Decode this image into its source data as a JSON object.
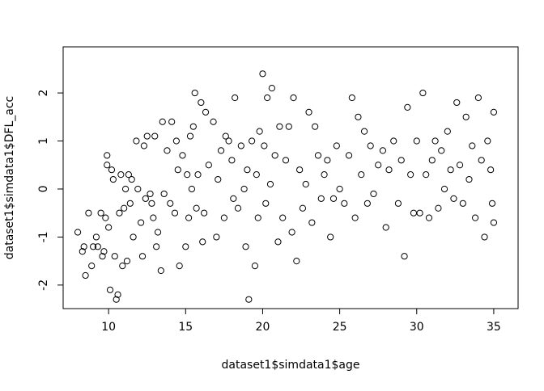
{
  "chart_data": {
    "type": "scatter",
    "x_label": "dataset1$simdata1$age",
    "y_label": "dataset1$simdata1$DFL_acc",
    "xlim": [
      7.05,
      36.58
    ],
    "ylim": [
      -2.49,
      2.96
    ],
    "xticks": [
      10,
      15,
      20,
      25,
      30,
      35
    ],
    "yticks": [
      -2,
      -1,
      0,
      1,
      2
    ],
    "color": "#000000",
    "x": [
      8.0,
      8.3,
      8.4,
      8.5,
      8.7,
      8.9,
      9.0,
      9.2,
      9.3,
      9.5,
      9.6,
      9.7,
      9.8,
      9.9,
      9.9,
      10.0,
      10.1,
      10.2,
      10.3,
      10.4,
      10.5,
      10.6,
      10.7,
      10.8,
      10.9,
      11.0,
      11.1,
      11.2,
      11.3,
      11.4,
      11.5,
      11.6,
      11.8,
      11.9,
      12.1,
      12.2,
      12.3,
      12.4,
      12.5,
      12.7,
      12.8,
      12.9,
      13.0,
      13.1,
      13.2,
      13.4,
      13.5,
      13.6,
      13.8,
      14.0,
      14.1,
      14.3,
      14.4,
      14.5,
      14.6,
      14.8,
      15.0,
      15.1,
      15.2,
      15.3,
      15.4,
      15.5,
      15.6,
      15.7,
      15.8,
      16.0,
      16.1,
      16.2,
      16.3,
      16.5,
      16.8,
      17.0,
      17.1,
      17.3,
      17.5,
      17.6,
      17.8,
      18.0,
      18.1,
      18.2,
      18.4,
      18.6,
      18.8,
      18.9,
      19.0,
      19.1,
      19.3,
      19.5,
      19.6,
      19.7,
      19.8,
      20.0,
      20.1,
      20.2,
      20.3,
      20.5,
      20.6,
      20.8,
      21.0,
      21.1,
      21.3,
      21.5,
      21.7,
      21.9,
      22.0,
      22.2,
      22.4,
      22.6,
      22.8,
      23.0,
      23.2,
      23.4,
      23.6,
      23.8,
      24.0,
      24.2,
      24.4,
      24.6,
      24.8,
      25.0,
      25.3,
      25.6,
      25.8,
      26.0,
      26.2,
      26.4,
      26.6,
      26.8,
      27.0,
      27.2,
      27.5,
      27.8,
      28.0,
      28.2,
      28.5,
      28.8,
      29.0,
      29.2,
      29.4,
      29.6,
      29.8,
      30.0,
      30.2,
      30.4,
      30.6,
      30.8,
      31.0,
      31.2,
      31.4,
      31.6,
      31.8,
      32.0,
      32.2,
      32.4,
      32.6,
      32.8,
      33.0,
      33.2,
      33.4,
      33.6,
      33.8,
      34.0,
      34.2,
      34.4,
      34.6,
      34.8,
      34.9,
      35.0,
      35.0
    ],
    "y": [
      -0.9,
      -1.3,
      -1.2,
      -1.8,
      -0.5,
      -1.6,
      -1.2,
      -1.0,
      -1.2,
      -0.5,
      -1.4,
      -1.3,
      -0.6,
      0.5,
      0.7,
      -0.8,
      -2.1,
      0.4,
      0.2,
      -1.4,
      -2.3,
      -2.2,
      -0.5,
      0.3,
      -1.6,
      -0.4,
      0.0,
      -1.5,
      0.3,
      -0.3,
      0.2,
      -1.0,
      1.0,
      0.0,
      -0.7,
      -1.4,
      0.9,
      -0.2,
      1.1,
      -0.1,
      -0.3,
      -0.6,
      1.1,
      -1.2,
      -0.9,
      -1.7,
      1.4,
      -0.1,
      0.8,
      -0.3,
      1.4,
      -0.5,
      1.0,
      0.4,
      -1.6,
      0.7,
      -1.2,
      0.3,
      -0.6,
      1.1,
      0.0,
      1.3,
      2.0,
      -0.4,
      0.3,
      1.8,
      -1.1,
      -0.5,
      1.6,
      0.5,
      1.4,
      -1.0,
      0.2,
      0.8,
      -0.6,
      1.1,
      1.0,
      0.6,
      -0.2,
      1.9,
      -0.4,
      0.9,
      0.0,
      -1.2,
      0.4,
      -2.3,
      1.0,
      -1.6,
      0.3,
      -0.6,
      1.2,
      2.4,
      0.9,
      -0.3,
      1.9,
      0.1,
      2.1,
      0.7,
      -1.1,
      1.3,
      -0.6,
      0.6,
      1.3,
      -0.9,
      1.9,
      -1.5,
      0.4,
      -0.4,
      0.1,
      1.6,
      -0.7,
      1.3,
      0.7,
      -0.2,
      0.3,
      0.6,
      -1.0,
      -0.2,
      0.9,
      0.0,
      -0.3,
      0.7,
      1.9,
      -0.6,
      1.5,
      0.3,
      1.2,
      -0.3,
      0.9,
      -0.1,
      0.5,
      0.8,
      -0.8,
      0.4,
      1.0,
      -0.3,
      0.6,
      -1.4,
      1.7,
      0.3,
      -0.5,
      1.0,
      -0.5,
      2.0,
      0.3,
      -0.6,
      0.6,
      1.0,
      -0.4,
      0.8,
      0.0,
      1.2,
      0.4,
      -0.2,
      1.8,
      0.5,
      -0.3,
      1.5,
      0.2,
      0.9,
      -0.6,
      1.9,
      0.6,
      -1.0,
      1.0,
      0.4,
      -0.3,
      1.6,
      -0.7
    ]
  }
}
